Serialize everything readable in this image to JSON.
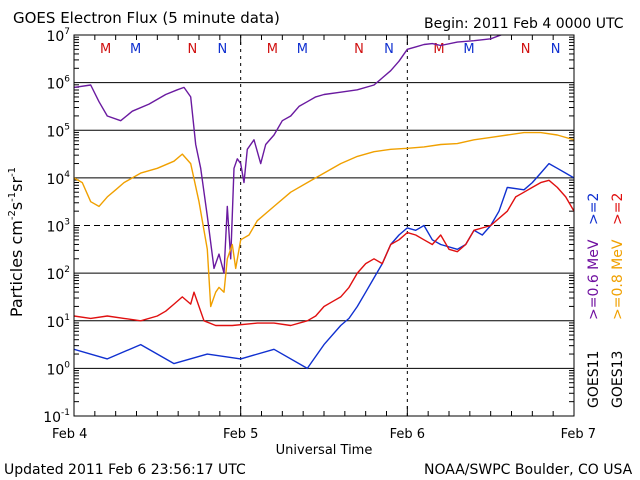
{
  "header": {
    "title": "GOES Electron Flux (5 minute data)",
    "begin": "Begin: 2011 Feb 4 0000 UTC"
  },
  "footer": {
    "updated": "Updated 2011 Feb  6 23:56:17 UTC",
    "source": "NOAA/SWPC Boulder, CO USA"
  },
  "chart_data": {
    "type": "line",
    "title": "GOES Electron Flux (5 minute data)",
    "xlabel": "Universal Time",
    "ylabel_base": "Particles cm",
    "ylabel_units": [
      "-2",
      "s",
      "-1",
      "sr",
      "-1"
    ],
    "xlim_days": [
      0,
      3
    ],
    "ylim_log10": [
      -1,
      7
    ],
    "y_scale": "log",
    "x_ticks": [
      {
        "t": 0,
        "label": "Feb 4"
      },
      {
        "t": 1,
        "label": "Feb 5"
      },
      {
        "t": 2,
        "label": "Feb 6"
      },
      {
        "t": 3,
        "label": "Feb 7"
      }
    ],
    "y_ticks": [
      {
        "base": "10",
        "exp": "-1",
        "log": -1
      },
      {
        "base": "10",
        "exp": "0",
        "log": 0
      },
      {
        "base": "10",
        "exp": "1",
        "log": 1
      },
      {
        "base": "10",
        "exp": "2",
        "log": 2
      },
      {
        "base": "10",
        "exp": "3",
        "log": 3
      },
      {
        "base": "10",
        "exp": "4",
        "log": 4
      },
      {
        "base": "10",
        "exp": "5",
        "log": 5
      },
      {
        "base": "10",
        "exp": "6",
        "log": 6
      },
      {
        "base": "10",
        "exp": "7",
        "log": 7
      }
    ],
    "threshold_log": 3,
    "markers": [
      {
        "t": 0.19,
        "label": "M",
        "color": "#d01010"
      },
      {
        "t": 0.37,
        "label": "M",
        "color": "#1030d0"
      },
      {
        "t": 0.71,
        "label": "N",
        "color": "#d01010"
      },
      {
        "t": 0.89,
        "label": "N",
        "color": "#1030d0"
      },
      {
        "t": 1.19,
        "label": "M",
        "color": "#d01010"
      },
      {
        "t": 1.37,
        "label": "M",
        "color": "#1030d0"
      },
      {
        "t": 1.71,
        "label": "N",
        "color": "#d01010"
      },
      {
        "t": 1.89,
        "label": "N",
        "color": "#1030d0"
      },
      {
        "t": 2.19,
        "label": "M",
        "color": "#d01010"
      },
      {
        "t": 2.37,
        "label": "M",
        "color": "#1030d0"
      },
      {
        "t": 2.71,
        "label": "N",
        "color": "#d01010"
      },
      {
        "t": 2.89,
        "label": "N",
        "color": "#1030d0"
      }
    ],
    "legend": {
      "groups": [
        {
          "sat": "GOES11",
          "items": [
            {
              "label": ">=0.6  MeV",
              "color": "#7010a0"
            },
            {
              "label": ">=2",
              "color": "#1030d0"
            }
          ]
        },
        {
          "sat": "GOES13",
          "items": [
            {
              "label": ">=0.8  MeV",
              "color": "#f0a000"
            },
            {
              "label": ">=2",
              "color": "#e01010"
            }
          ]
        }
      ]
    },
    "series": [
      {
        "name": "GOES11 >=0.6 MeV",
        "color": "#6a1aa0",
        "x": [
          0,
          0.1,
          0.15,
          0.2,
          0.28,
          0.35,
          0.45,
          0.55,
          0.62,
          0.66,
          0.7,
          0.73,
          0.76,
          0.8,
          0.84,
          0.87,
          0.9,
          0.92,
          0.94,
          0.96,
          0.98,
          1.0,
          1.02,
          1.04,
          1.08,
          1.12,
          1.15,
          1.2,
          1.25,
          1.3,
          1.35,
          1.4,
          1.45,
          1.5,
          1.6,
          1.7,
          1.8,
          1.85,
          1.9,
          1.95,
          2.0,
          2.05,
          2.1,
          2.15,
          2.2,
          2.3,
          2.4,
          2.5,
          2.6,
          2.7,
          2.8,
          2.9,
          2.95,
          3.0
        ],
        "y": [
          5.9,
          5.95,
          5.6,
          5.3,
          5.2,
          5.4,
          5.55,
          5.75,
          5.85,
          5.9,
          5.7,
          4.7,
          4.2,
          3.2,
          2.1,
          2.4,
          2.0,
          3.4,
          2.3,
          4.2,
          4.4,
          4.3,
          3.9,
          4.6,
          4.8,
          4.3,
          4.7,
          4.9,
          5.2,
          5.3,
          5.5,
          5.6,
          5.7,
          5.75,
          5.8,
          5.85,
          5.95,
          6.1,
          6.25,
          6.45,
          6.7,
          6.75,
          6.8,
          6.82,
          6.78,
          6.85,
          6.88,
          6.92,
          7.05,
          7.15,
          7.2,
          7.18,
          7.1,
          7.05
        ]
      },
      {
        "name": "GOES13 >=0.8 MeV",
        "color": "#f0a000",
        "x": [
          0,
          0.05,
          0.1,
          0.15,
          0.2,
          0.25,
          0.3,
          0.4,
          0.5,
          0.6,
          0.65,
          0.7,
          0.75,
          0.8,
          0.82,
          0.85,
          0.87,
          0.9,
          0.92,
          0.95,
          0.97,
          1.0,
          1.05,
          1.1,
          1.2,
          1.3,
          1.4,
          1.5,
          1.6,
          1.7,
          1.8,
          1.9,
          2.0,
          2.1,
          2.2,
          2.3,
          2.4,
          2.5,
          2.6,
          2.7,
          2.8,
          2.9,
          3.0
        ],
        "y": [
          4.0,
          3.9,
          3.5,
          3.4,
          3.6,
          3.75,
          3.9,
          4.1,
          4.2,
          4.35,
          4.5,
          4.3,
          3.5,
          2.5,
          1.3,
          1.6,
          1.7,
          1.6,
          2.3,
          2.6,
          2.1,
          2.7,
          2.8,
          3.1,
          3.4,
          3.7,
          3.9,
          4.1,
          4.3,
          4.45,
          4.55,
          4.6,
          4.62,
          4.65,
          4.7,
          4.72,
          4.8,
          4.85,
          4.9,
          4.95,
          4.95,
          4.9,
          4.8
        ]
      },
      {
        "name": "GOES11 >=2 MeV",
        "color": "#1030d0",
        "x": [
          0,
          0.2,
          0.4,
          0.6,
          0.8,
          1.0,
          1.2,
          1.4,
          1.5,
          1.6,
          1.65,
          1.7,
          1.75,
          1.8,
          1.85,
          1.9,
          1.95,
          2.0,
          2.05,
          2.1,
          2.15,
          2.2,
          2.3,
          2.35,
          2.4,
          2.45,
          2.5,
          2.55,
          2.6,
          2.7,
          2.75,
          2.8,
          2.85,
          2.9,
          2.95,
          3.0
        ],
        "y": [
          0.4,
          0.2,
          0.5,
          0.1,
          0.3,
          0.2,
          0.4,
          0.0,
          0.5,
          0.9,
          1.05,
          1.3,
          1.6,
          1.9,
          2.2,
          2.6,
          2.8,
          2.95,
          2.9,
          3.0,
          2.7,
          2.6,
          2.5,
          2.6,
          2.9,
          2.8,
          3.0,
          3.3,
          3.8,
          3.75,
          3.9,
          4.1,
          4.3,
          4.2,
          4.1,
          4.0
        ]
      },
      {
        "name": "GOES13 >=2 MeV",
        "color": "#e01010",
        "x": [
          0,
          0.1,
          0.2,
          0.3,
          0.4,
          0.5,
          0.55,
          0.6,
          0.65,
          0.7,
          0.72,
          0.75,
          0.78,
          0.85,
          0.95,
          1.1,
          1.2,
          1.3,
          1.4,
          1.45,
          1.5,
          1.55,
          1.6,
          1.65,
          1.7,
          1.75,
          1.8,
          1.85,
          1.9,
          1.95,
          2.0,
          2.05,
          2.1,
          2.15,
          2.2,
          2.25,
          2.3,
          2.35,
          2.4,
          2.5,
          2.6,
          2.65,
          2.7,
          2.75,
          2.8,
          2.85,
          2.9,
          2.95,
          3.0
        ],
        "y": [
          1.1,
          1.05,
          1.1,
          1.05,
          1.0,
          1.1,
          1.2,
          1.35,
          1.5,
          1.35,
          1.6,
          1.3,
          1.0,
          0.9,
          0.9,
          0.95,
          0.95,
          0.9,
          1.0,
          1.1,
          1.3,
          1.4,
          1.5,
          1.7,
          2.0,
          2.2,
          2.3,
          2.2,
          2.6,
          2.7,
          2.85,
          2.8,
          2.7,
          2.6,
          2.8,
          2.5,
          2.45,
          2.6,
          2.9,
          3.0,
          3.3,
          3.6,
          3.7,
          3.8,
          3.9,
          3.95,
          3.8,
          3.6,
          3.3
        ]
      }
    ]
  }
}
